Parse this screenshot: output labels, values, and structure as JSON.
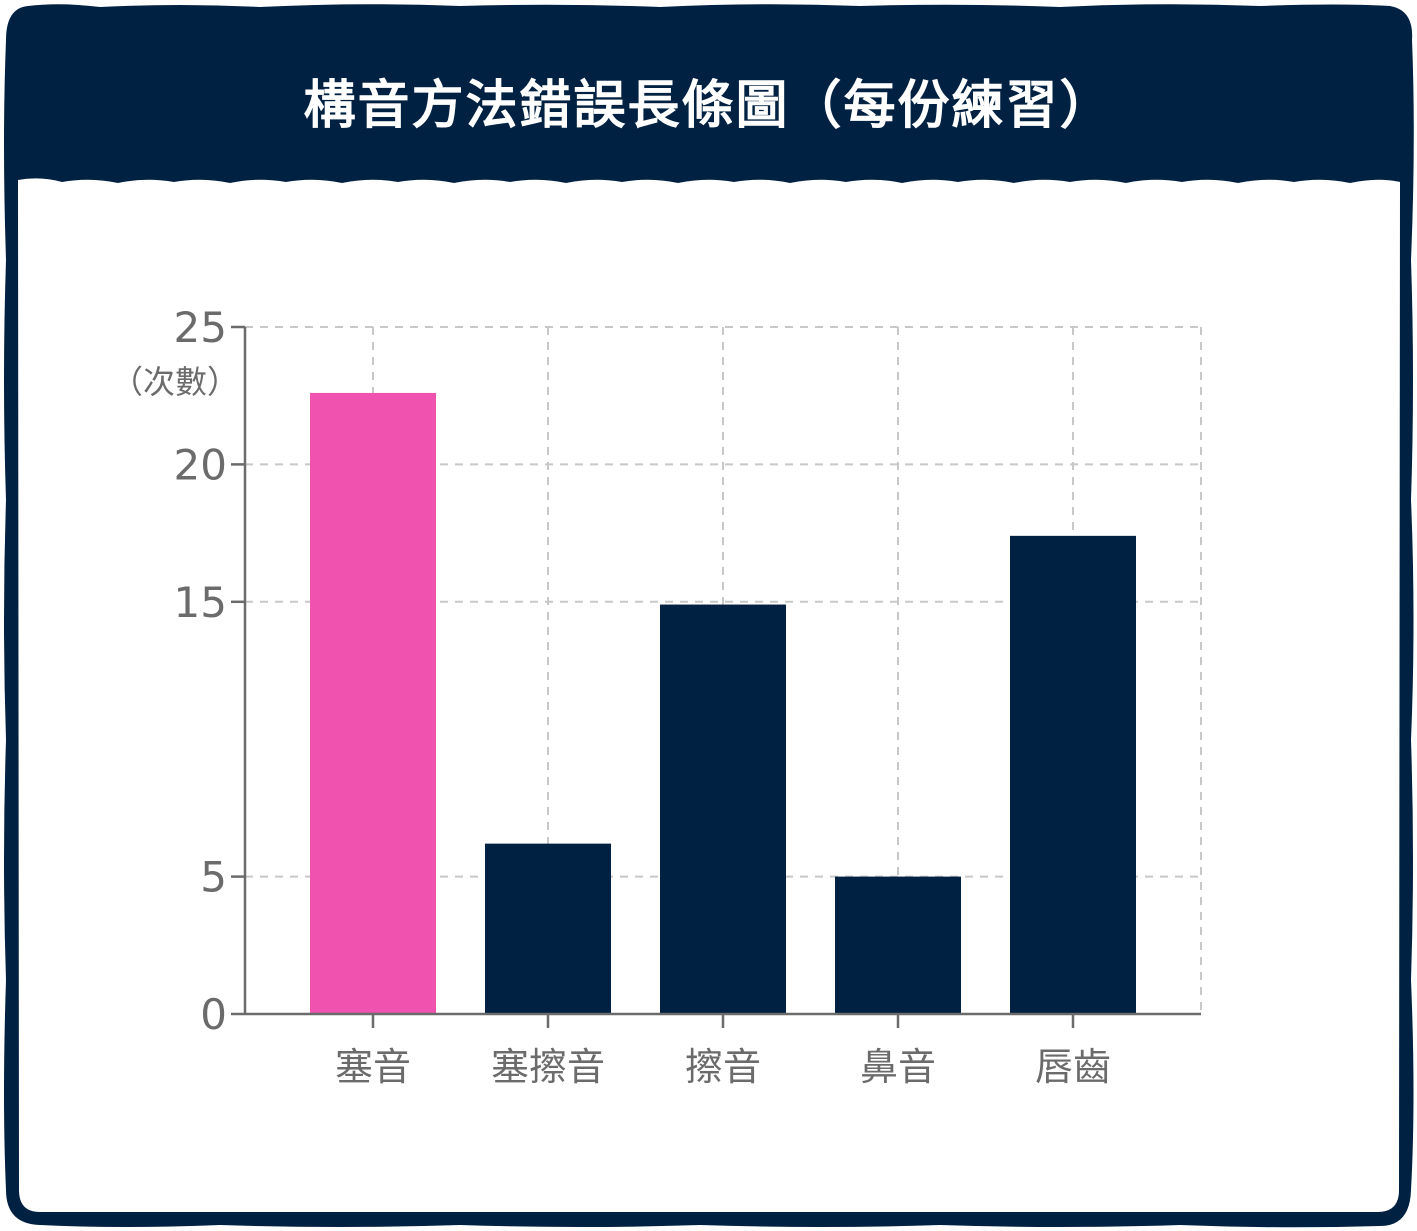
{
  "chart_data": {
    "type": "bar",
    "title": "構音方法錯誤長條圖（每份練習）",
    "ylabel": "（次數）",
    "xlabel": "",
    "categories": [
      "塞音",
      "塞擦音",
      "擦音",
      "鼻音",
      "唇齒"
    ],
    "values": [
      22.6,
      6.2,
      14.9,
      5.0,
      17.4
    ],
    "highlight_index": 0,
    "ylim": [
      0,
      25
    ],
    "yticks": [
      0,
      5,
      15,
      20,
      25
    ],
    "grid": true,
    "colors": {
      "highlight": "#f052b0",
      "bar": "#002142",
      "frame": "#002142",
      "grid": "#c8c8c8",
      "axis": "#6b6b6b",
      "text": "#6b6b6b"
    }
  }
}
